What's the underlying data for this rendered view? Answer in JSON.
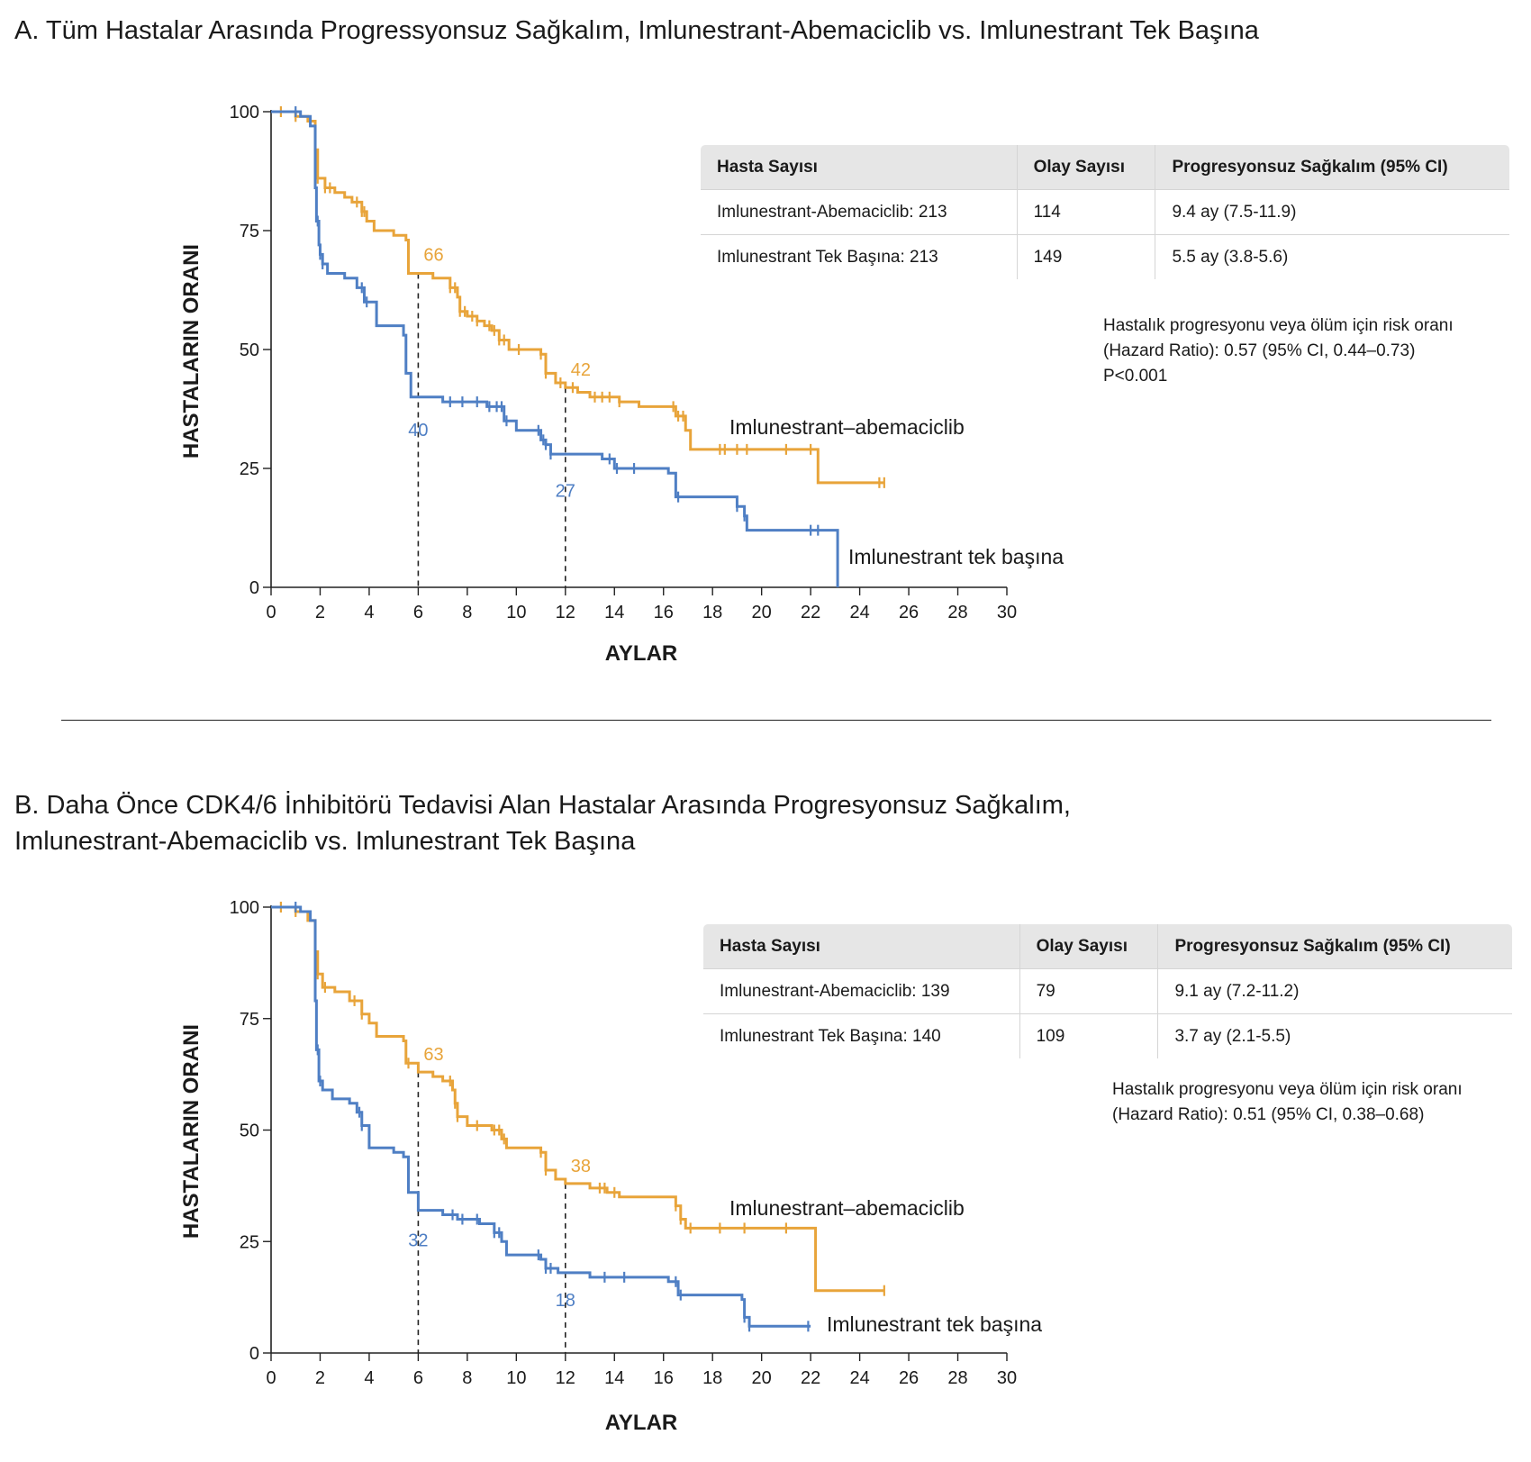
{
  "chart_data": [
    {
      "type": "line",
      "title": "A.  Tüm Hastalar Arasında Progressyonsuz Sağkalım, Imlunestrant-Abemaciclib vs. Imlunestrant Tek Başına",
      "xlabel": "AYLAR",
      "ylabel": "HASTALARIN ORANI",
      "xlim": [
        0,
        30
      ],
      "ylim": [
        0,
        100
      ],
      "xticks": [
        "0",
        "2",
        "4",
        "6",
        "8",
        "10",
        "12",
        "14",
        "16",
        "18",
        "20",
        "22",
        "24",
        "26",
        "28",
        "30"
      ],
      "yticks": [
        "0",
        "25",
        "50",
        "75",
        "100"
      ],
      "series": [
        {
          "name": "Imlunestrant–abemaciclib",
          "color": "#e8a43a",
          "x": [
            0,
            1.0,
            1.5,
            1.8,
            1.9,
            2.2,
            2.6,
            3.0,
            3.3,
            3.7,
            3.9,
            4.2,
            5.0,
            5.5,
            5.6,
            6.0,
            6.6,
            7.3,
            7.6,
            7.7,
            8.0,
            8.4,
            8.7,
            9.0,
            9.3,
            9.7,
            10.5,
            11.0,
            11.2,
            11.6,
            12.0,
            12.5,
            13.0,
            13.6,
            14.2,
            15.0,
            16.5,
            16.9,
            17.1,
            22.1,
            22.3,
            25.0
          ],
          "y": [
            100,
            99,
            98,
            92,
            86,
            84,
            83,
            82,
            81,
            79,
            77,
            75,
            74,
            73,
            66,
            66,
            65,
            63,
            61,
            58,
            57,
            56,
            55,
            54,
            52,
            50,
            50,
            49,
            45,
            43,
            42,
            41,
            40,
            40,
            39,
            38,
            36,
            33,
            29,
            29,
            22,
            22
          ],
          "censor_x": [
            0.4,
            1.0,
            1.8,
            1.9,
            2.2,
            2.4,
            3.5,
            3.7,
            3.8,
            7.3,
            7.5,
            7.7,
            7.9,
            8.2,
            8.4,
            8.9,
            9.1,
            9.3,
            9.5,
            10.1,
            11.0,
            11.2,
            11.8,
            12.3,
            13.2,
            13.5,
            13.8,
            14.2,
            16.4,
            16.6,
            16.8,
            18.3,
            18.5,
            19.0,
            19.4,
            21.0,
            22.0,
            24.8,
            25.0
          ]
        },
        {
          "name": "Imlunestrant tek başına",
          "color": "#4f7fc4",
          "x": [
            0,
            0.9,
            1.2,
            1.6,
            1.8,
            1.85,
            1.95,
            2.0,
            2.1,
            2.3,
            3.0,
            3.5,
            3.8,
            4.3,
            5.4,
            5.5,
            5.7,
            6.0,
            7.0,
            8.0,
            8.8,
            9.5,
            10.0,
            10.8,
            11.0,
            11.2,
            11.4,
            12.0,
            13.5,
            14.0,
            16.2,
            16.5,
            19.0,
            19.3,
            19.4,
            23.0,
            23.1
          ],
          "y": [
            100,
            100,
            99,
            97,
            84,
            77,
            72,
            70,
            68,
            66,
            65,
            63,
            60,
            55,
            53,
            45,
            40,
            40,
            39,
            39,
            38,
            35,
            33,
            33,
            31,
            30,
            28,
            28,
            27,
            25,
            24,
            19,
            17,
            15,
            12,
            12,
            0
          ],
          "censor_x": [
            1.0,
            1.9,
            2.0,
            2.1,
            3.7,
            3.9,
            7.3,
            7.8,
            8.4,
            8.9,
            9.2,
            9.4,
            9.6,
            10.9,
            11.1,
            11.2,
            11.4,
            13.8,
            14.1,
            14.8,
            16.6,
            19.0,
            19.3,
            22.0,
            22.3
          ]
        }
      ],
      "annotations": [
        {
          "text": "66",
          "series": 0,
          "x": 6,
          "y": 66
        },
        {
          "text": "42",
          "series": 0,
          "x": 12,
          "y": 42
        },
        {
          "text": "40",
          "series": 1,
          "x": 6,
          "y": 40
        },
        {
          "text": "27",
          "series": 1,
          "x": 12,
          "y": 27
        }
      ],
      "reference_lines_x": [
        6,
        12
      ]
    },
    {
      "type": "line",
      "title": "B. Daha Önce CDK4/6 İnhibitörü Tedavisi Alan Hastalar Arasında Progresyonsuz Sağkalım, Imlunestrant-Abemaciclib vs. Imlunestrant Tek Başına",
      "xlabel": "AYLAR",
      "ylabel": "HASTALARIN ORANI",
      "xlim": [
        0,
        30
      ],
      "ylim": [
        0,
        100
      ],
      "xticks": [
        "0",
        "2",
        "4",
        "6",
        "8",
        "10",
        "12",
        "14",
        "16",
        "18",
        "20",
        "22",
        "24",
        "26",
        "28",
        "30"
      ],
      "yticks": [
        "0",
        "25",
        "50",
        "75",
        "100"
      ],
      "series": [
        {
          "name": "Imlunestrant–abemaciclib",
          "color": "#e8a43a",
          "x": [
            0,
            1.0,
            1.5,
            1.8,
            1.9,
            2.1,
            2.6,
            3.2,
            3.7,
            4.0,
            4.3,
            5.4,
            5.5,
            6.0,
            6.6,
            7.0,
            7.4,
            7.5,
            7.6,
            8.0,
            9.0,
            9.4,
            9.6,
            10.8,
            11.0,
            11.2,
            11.6,
            12.0,
            13.0,
            13.7,
            14.2,
            15.5,
            16.5,
            16.7,
            16.9,
            22.1,
            22.2,
            25.0
          ],
          "y": [
            100,
            99,
            97,
            90,
            85,
            82,
            81,
            79,
            76,
            74,
            71,
            70,
            65,
            63,
            62,
            61,
            59,
            56,
            53,
            51,
            50,
            48,
            46,
            46,
            45,
            41,
            39,
            38,
            37,
            36,
            35,
            35,
            33,
            30,
            28,
            28,
            14,
            14
          ],
          "censor_x": [
            0.4,
            1.0,
            1.8,
            1.9,
            2.2,
            3.4,
            3.7,
            5.6,
            7.3,
            7.5,
            7.6,
            8.4,
            9.1,
            9.3,
            9.5,
            11.0,
            11.2,
            13.4,
            13.6,
            14.0,
            16.5,
            16.7,
            17.1,
            18.3,
            19.3,
            21.0,
            25.0
          ]
        },
        {
          "name": "Imlunestrant tek başına",
          "color": "#4f7fc4",
          "x": [
            0,
            0.9,
            1.2,
            1.6,
            1.8,
            1.85,
            1.95,
            2.1,
            2.5,
            3.2,
            3.5,
            3.7,
            4.0,
            5.0,
            5.4,
            5.6,
            6.0,
            7.0,
            7.6,
            8.5,
            9.1,
            9.4,
            9.6,
            10.5,
            11.0,
            11.2,
            11.7,
            12.0,
            13.0,
            16.2,
            16.6,
            18.0,
            19.2,
            19.3,
            19.5,
            22.0
          ],
          "y": [
            100,
            100,
            99,
            97,
            79,
            68,
            61,
            59,
            57,
            56,
            54,
            51,
            46,
            45,
            44,
            36,
            32,
            31,
            30,
            29,
            27,
            25,
            22,
            22,
            21,
            19,
            18,
            18,
            17,
            16,
            13,
            13,
            12,
            8,
            6,
            6
          ],
          "censor_x": [
            1.0,
            1.9,
            2.0,
            3.6,
            3.7,
            7.4,
            7.8,
            8.4,
            9.1,
            9.3,
            10.9,
            11.2,
            11.4,
            13.6,
            14.4,
            16.5,
            16.7,
            19.3,
            19.5,
            21.9
          ]
        }
      ],
      "annotations": [
        {
          "text": "63",
          "series": 0,
          "x": 6,
          "y": 63
        },
        {
          "text": "38",
          "series": 0,
          "x": 12,
          "y": 38
        },
        {
          "text": "32",
          "series": 1,
          "x": 6,
          "y": 32
        },
        {
          "text": "18",
          "series": 1,
          "x": 12,
          "y": 18
        }
      ],
      "reference_lines_x": [
        6,
        12
      ]
    }
  ],
  "panel_a": {
    "title": "A.  Tüm Hastalar Arasında Progressyonsuz Sağkalım, Imlunestrant-Abemaciclib vs. Imlunestrant Tek Başına",
    "table": {
      "headers": [
        "Hasta Sayısı",
        "Olay Sayısı",
        "Progresyonsuz Sağkalım (95% CI)"
      ],
      "rows": [
        [
          "Imlunestrant-Abemaciclib: 213",
          "114",
          "9.4 ay (7.5-11.9)"
        ],
        [
          "Imlunestrant Tek Başına: 213",
          "149",
          "5.5 ay (3.8-5.6)"
        ]
      ]
    },
    "hazard_lines": [
      "Hastalık progresyonu veya ölüm için risk oranı",
      "(Hazard Ratio): 0.57 (95% CI, 0.44–0.73)",
      "P<0.001"
    ]
  },
  "panel_b": {
    "title_line1": "B. Daha Önce CDK4/6 İnhibitörü Tedavisi Alan Hastalar Arasında Progresyonsuz Sağkalım,",
    "title_line2": "Imlunestrant-Abemaciclib vs. Imlunestrant Tek Başına",
    "table": {
      "headers": [
        "Hasta Sayısı",
        "Olay Sayısı",
        "Progresyonsuz Sağkalım (95% CI)"
      ],
      "rows": [
        [
          "Imlunestrant-Abemaciclib: 139",
          "79",
          "9.1 ay (7.2-11.2)"
        ],
        [
          "Imlunestrant Tek Başına: 140",
          "109",
          "3.7 ay (2.1-5.5)"
        ]
      ]
    },
    "hazard_lines": [
      "Hastalık progresyonu veya ölüm için risk oranı",
      "(Hazard Ratio): 0.51 (95% CI, 0.38–0.68)"
    ]
  }
}
